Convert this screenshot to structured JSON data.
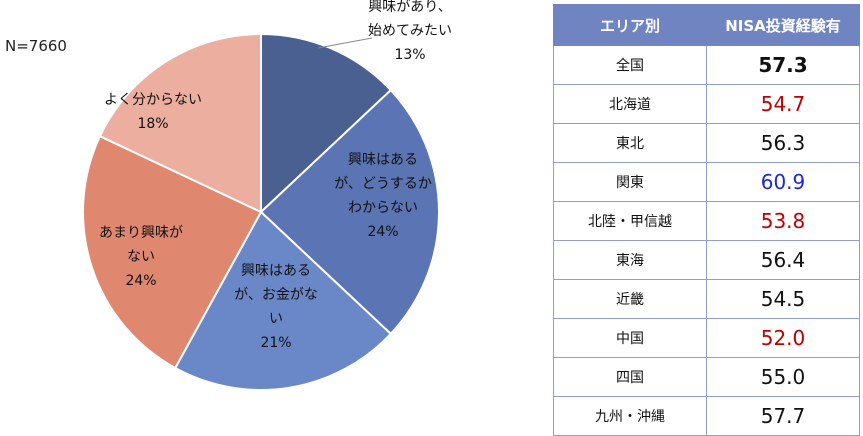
{
  "n_label": "N=7660",
  "chart_data": {
    "type": "pie",
    "slices": [
      {
        "lines": [
          "興味があり、",
          "始めてみたい",
          "13%"
        ],
        "value": 13,
        "color": "#4a6091"
      },
      {
        "lines": [
          "興味はある",
          "が、どうするか",
          "わからない",
          "24%"
        ],
        "value": 24,
        "color": "#5a74b4"
      },
      {
        "lines": [
          "興味はある",
          "が、お金がな",
          "い",
          "21%"
        ],
        "value": 21,
        "color": "#6a88c8"
      },
      {
        "lines": [
          "あまり興味が",
          "ない",
          "24%"
        ],
        "value": 24,
        "color": "#e08770"
      },
      {
        "lines": [
          "よく分からない",
          "18%"
        ],
        "value": 18,
        "color": "#ecaf9f"
      }
    ]
  },
  "table": {
    "headers": [
      "エリア別",
      "NISA投資経験有"
    ],
    "rows": [
      {
        "area": "全国",
        "value": "57.3",
        "style": "bold"
      },
      {
        "area": "北海道",
        "value": "54.7",
        "style": "red"
      },
      {
        "area": "東北",
        "value": "56.3",
        "style": "normal"
      },
      {
        "area": "関東",
        "value": "60.9",
        "style": "blue"
      },
      {
        "area": "北陸・甲信越",
        "value": "53.8",
        "style": "red"
      },
      {
        "area": "東海",
        "value": "56.4",
        "style": "normal"
      },
      {
        "area": "近畿",
        "value": "54.5",
        "style": "normal"
      },
      {
        "area": "中国",
        "value": "52.0",
        "style": "red"
      },
      {
        "area": "四国",
        "value": "55.0",
        "style": "normal"
      },
      {
        "area": "九州・沖縄",
        "value": "57.7",
        "style": "normal"
      }
    ]
  }
}
